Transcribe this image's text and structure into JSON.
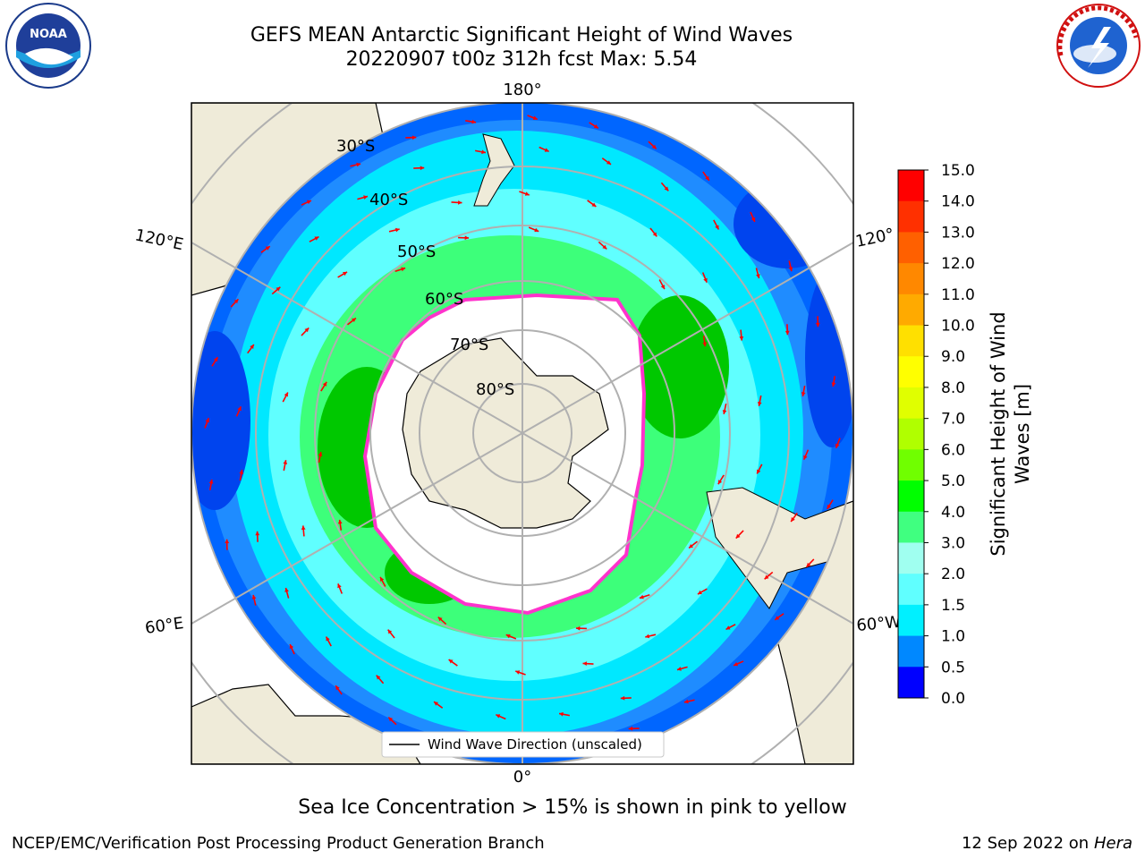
{
  "title": {
    "line1": "GEFS MEAN Antarctic Significant Height of Wind Waves",
    "line2": "20220907 t00z 312h fcst   Max: 5.54"
  },
  "logos": {
    "left": {
      "icon": "noaa-logo",
      "text": "NOAA"
    },
    "right": {
      "icon": "nws-logo",
      "text": "NATIONAL WEATHER SERVICE"
    }
  },
  "map": {
    "projection": "south-polar-stereographic",
    "longitude_labels": {
      "top": "180°",
      "bottom": "0°",
      "upper_left": "120°E",
      "lower_left": "60°E",
      "upper_right": "120°",
      "lower_right": "60°W"
    },
    "latitude_labels": [
      "30°S",
      "40°S",
      "50°S",
      "60°S",
      "70°S",
      "80°S"
    ],
    "legend": "Wind Wave Direction (unscaled)",
    "colors": {
      "land": "#efebd9",
      "ocean_low": "#00e8ff",
      "ocean_mid": "#3dff7a",
      "ocean_high": "#00c800",
      "deep_blue": "#0066ff",
      "ice_edge": "#ff33cc",
      "arrow": "#ff0000"
    }
  },
  "colorbar": {
    "label": "Significant Height of Wind Waves [m]",
    "label_line1": "Significant Height of Wind",
    "label_line2": "Waves [m]",
    "ticks": [
      "15.0",
      "14.0",
      "13.0",
      "12.0",
      "11.0",
      "10.0",
      "9.0",
      "8.0",
      "7.0",
      "6.0",
      "5.0",
      "4.0",
      "3.0",
      "2.0",
      "1.5",
      "1.0",
      "0.5",
      "0.0"
    ],
    "colors": [
      "#ff0000",
      "#ff3000",
      "#ff6000",
      "#ff8800",
      "#ffaa00",
      "#ffe000",
      "#ffff00",
      "#e0ff00",
      "#b0ff00",
      "#70ff00",
      "#00ff00",
      "#40ff80",
      "#a0fff0",
      "#60ffff",
      "#00f0ff",
      "#0088ff",
      "#0000ff"
    ]
  },
  "caption": "Sea Ice Concentration > 15% is shown in pink to yellow",
  "credit": "NCEP/EMC/Verification Post Processing Product Generation Branch",
  "datestamp": {
    "date": "12 Sep 2022 on",
    "machine": "Hera"
  }
}
